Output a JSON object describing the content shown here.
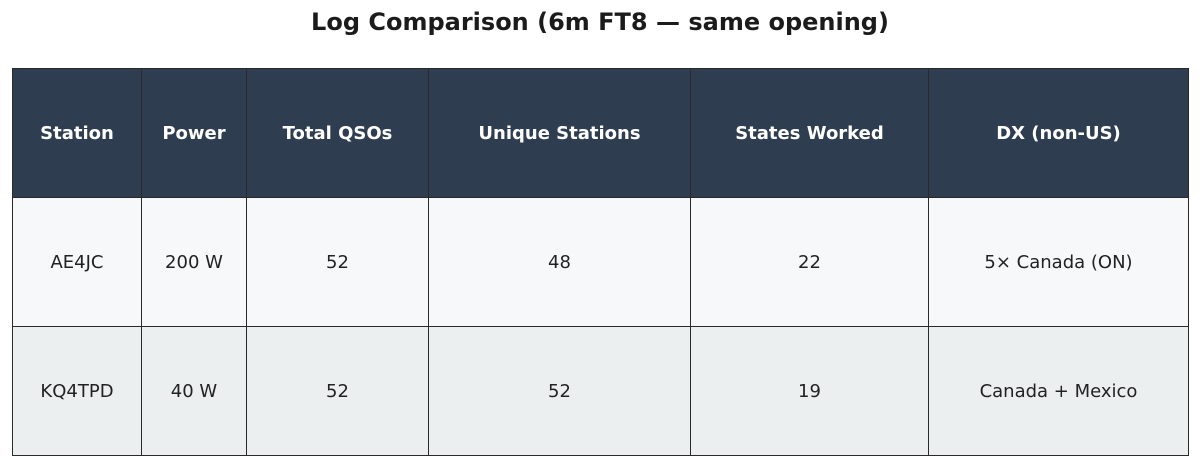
{
  "title": "Log Comparison (6m FT8 — same opening)",
  "table": {
    "header": [
      "Station",
      "Power",
      "Total QSOs",
      "Unique Stations",
      "States Worked",
      "DX (non-US)"
    ],
    "rows": [
      [
        "AE4JC",
        "200 W",
        52,
        48,
        22,
        "5× Canada (ON)"
      ],
      [
        "KQ4TPD",
        "40 W",
        52,
        52,
        19,
        "Canada + Mexico"
      ]
    ]
  }
}
